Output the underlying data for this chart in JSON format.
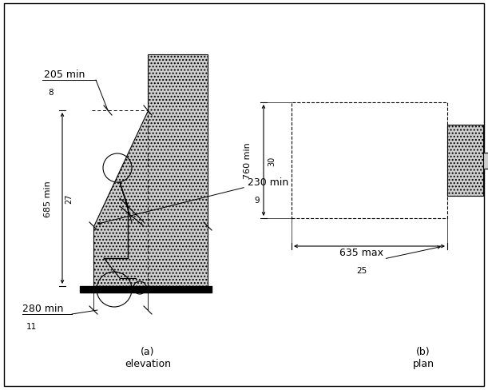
{
  "bg_color": "#ffffff",
  "figure_width": 6.11,
  "figure_height": 4.89,
  "title_a": "(a)\nelevation",
  "title_b": "(b)\nplan",
  "dim_205": "205 min",
  "dim_8": "8",
  "dim_685": "685 min",
  "dim_27": "27",
  "dim_230": "230 min",
  "dim_9": "9",
  "dim_280": "280 min",
  "dim_11": "11",
  "dim_760": "760 min",
  "dim_30": "30",
  "dim_635": "635 max",
  "dim_25": "25",
  "hatch_color": "#bbbbbb",
  "hatch_pattern": "....",
  "floor_color": "#000000"
}
